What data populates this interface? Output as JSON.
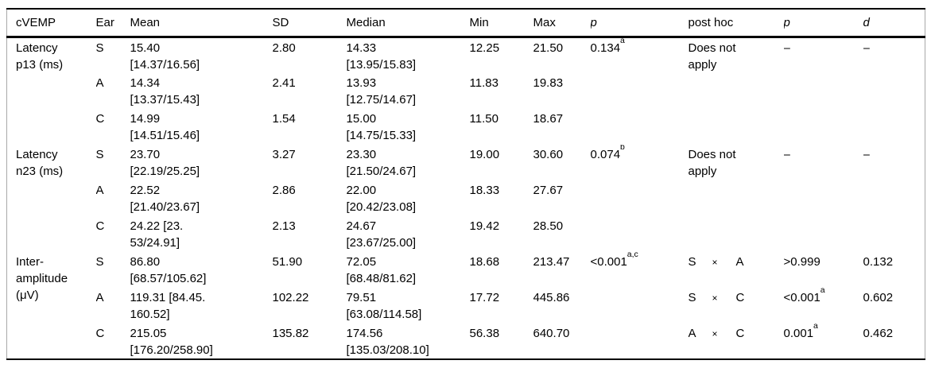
{
  "table": {
    "columns": [
      {
        "key": "cvemp",
        "label": "cVEMP"
      },
      {
        "key": "ear",
        "label": "Ear"
      },
      {
        "key": "mean",
        "label": "Mean"
      },
      {
        "key": "sd",
        "label": "SD"
      },
      {
        "key": "median",
        "label": "Median"
      },
      {
        "key": "min",
        "label": "Min"
      },
      {
        "key": "max",
        "label": "Max"
      },
      {
        "key": "p",
        "label": "p"
      },
      {
        "key": "posthoc",
        "label": "post hoc"
      },
      {
        "key": "p2",
        "label": "p"
      },
      {
        "key": "d",
        "label": "d"
      }
    ],
    "groups": [
      {
        "label_lines": [
          "Latency",
          "p13 (ms)"
        ],
        "rows": [
          {
            "ear": "S",
            "mean": [
              "15.40",
              "[14.37/16.56]"
            ],
            "sd": "2.80",
            "median": [
              "14.33",
              "[13.95/15.83]"
            ],
            "min": "12.25",
            "max": "21.50",
            "p": {
              "text": "0.134",
              "sup": "a"
            },
            "posthoc": {
              "lines": [
                "Does not",
                "apply"
              ]
            },
            "p2": "–",
            "d": "–"
          },
          {
            "ear": "A",
            "mean": [
              "14.34",
              "[13.37/15.43]"
            ],
            "sd": "2.41",
            "median": [
              "13.93",
              "[12.75/14.67]"
            ],
            "min": "11.83",
            "max": "19.83"
          },
          {
            "ear": "C",
            "mean": [
              "14.99",
              "[14.51/15.46]"
            ],
            "sd": "1.54",
            "median": [
              "15.00",
              "[14.75/15.33]"
            ],
            "min": "11.50",
            "max": "18.67"
          }
        ]
      },
      {
        "label_lines": [
          "Latency",
          "n23 (ms)"
        ],
        "rows": [
          {
            "ear": "S",
            "mean": [
              "23.70",
              "[22.19/25.25]"
            ],
            "sd": "3.27",
            "median": [
              "23.30",
              "[21.50/24.67]"
            ],
            "min": "19.00",
            "max": "30.60",
            "p": {
              "text": "0.074",
              "sup": "b"
            },
            "posthoc": {
              "lines": [
                "Does not",
                "apply"
              ]
            },
            "p2": "–",
            "d": "–"
          },
          {
            "ear": "A",
            "mean": [
              "22.52",
              "[21.40/23.67]"
            ],
            "sd": "2.86",
            "median": [
              "22.00",
              "[20.42/23.08]"
            ],
            "min": "18.33",
            "max": "27.67"
          },
          {
            "ear": "C",
            "mean": [
              "24.22 [23.",
              "53/24.91]"
            ],
            "sd": "2.13",
            "median": [
              "24.67",
              "[23.67/25.00]"
            ],
            "min": "19.42",
            "max": "28.50"
          }
        ]
      },
      {
        "label_lines": [
          "Inter-",
          "amplitude",
          "(μV)"
        ],
        "rows": [
          {
            "ear": "S",
            "mean": [
              "86.80",
              "[68.57/105.62]"
            ],
            "sd": "51.90",
            "median": [
              "72.05",
              "[68.48/81.62]"
            ],
            "min": "18.68",
            "max": "213.47",
            "p": {
              "text": "<0.001",
              "sup": "a,c"
            },
            "posthoc": {
              "pair": [
                "S",
                "×",
                "A"
              ]
            },
            "p2": {
              "text": ">0.999"
            },
            "d": "0.132"
          },
          {
            "ear": "A",
            "mean": [
              "119.31 [84.45.",
              "160.52]"
            ],
            "sd": "102.22",
            "median": [
              "79.51",
              "[63.08/114.58]"
            ],
            "min": "17.72",
            "max": "445.86",
            "posthoc": {
              "pair": [
                "S",
                "×",
                "C"
              ]
            },
            "p2": {
              "text": "<0.001",
              "sup": "a"
            },
            "d": "0.602"
          },
          {
            "ear": "C",
            "mean": [
              "215.05",
              "[176.20/258.90]"
            ],
            "sd": "135.82",
            "median": [
              "174.56",
              "[135.03/208.10]"
            ],
            "min": "56.38",
            "max": "640.70",
            "posthoc": {
              "pair": [
                "A",
                "×",
                "C"
              ]
            },
            "p2": {
              "text": "0.001",
              "sup": "a"
            },
            "d": "0.462"
          }
        ]
      }
    ]
  }
}
